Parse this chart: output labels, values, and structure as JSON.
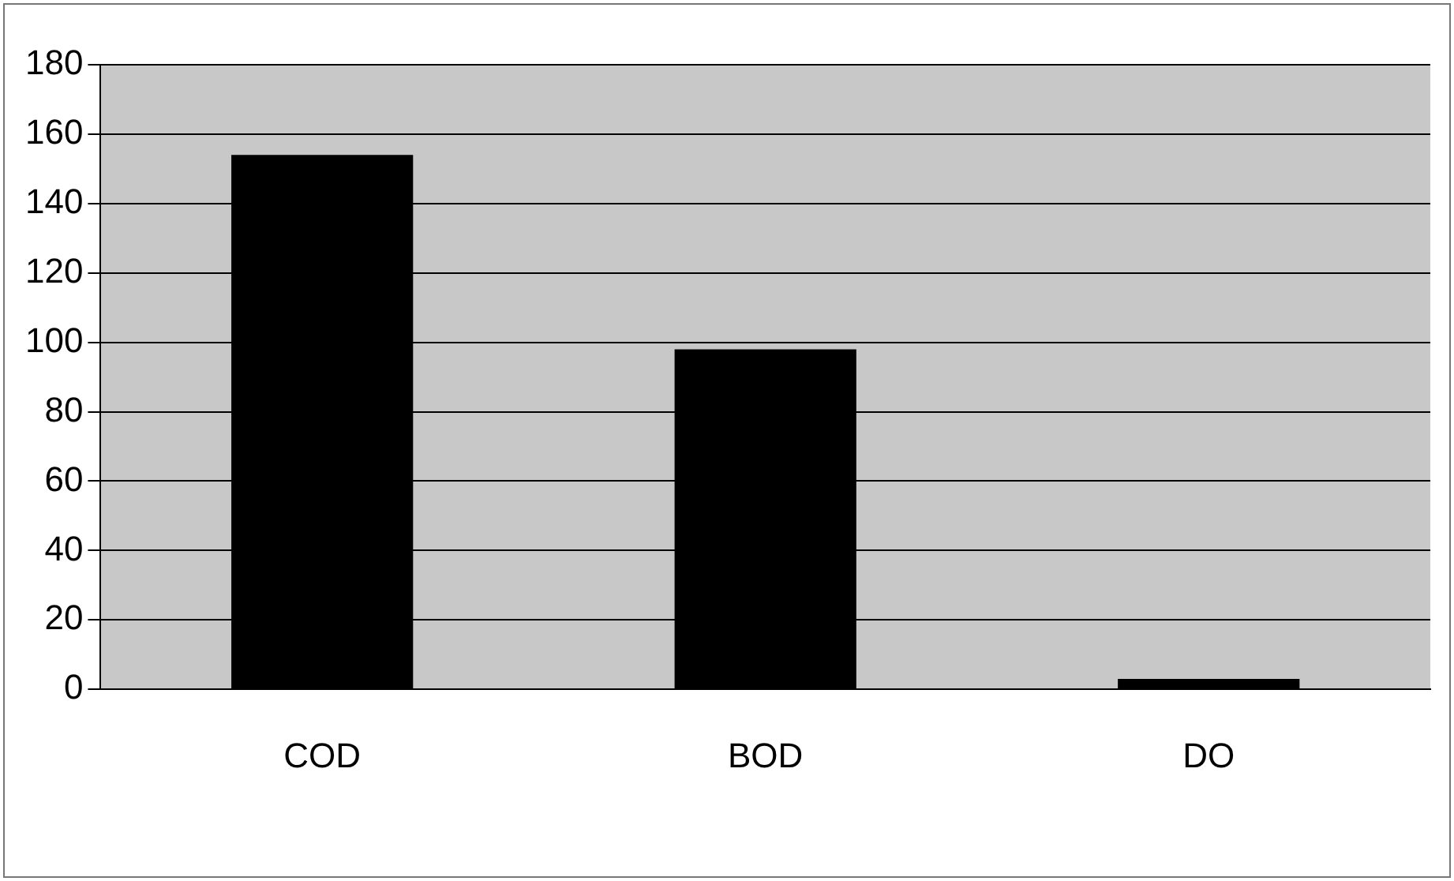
{
  "chart_data": {
    "type": "bar",
    "categories": [
      "COD",
      "BOD",
      "DO"
    ],
    "values": [
      154,
      98,
      3
    ],
    "color": "#000000",
    "ylim": [
      0,
      180
    ],
    "yticks": [
      0,
      20,
      40,
      60,
      80,
      100,
      120,
      140,
      160,
      180
    ],
    "grid": "y"
  }
}
